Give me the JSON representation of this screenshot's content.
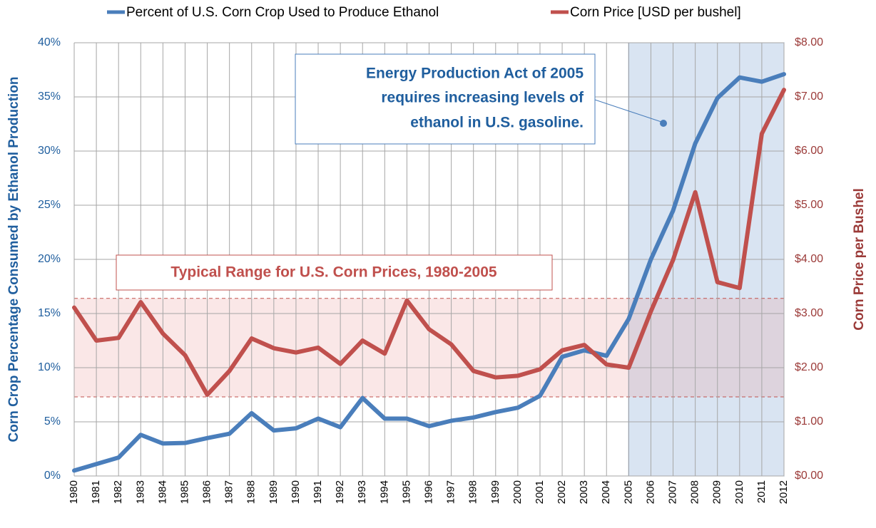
{
  "chart_data": {
    "type": "line",
    "x": [
      1980,
      1981,
      1982,
      1983,
      1984,
      1985,
      1986,
      1987,
      1988,
      1989,
      1990,
      1991,
      1992,
      1993,
      1994,
      1995,
      1996,
      1997,
      1998,
      1999,
      2000,
      2001,
      2002,
      2003,
      2004,
      2005,
      2006,
      2007,
      2008,
      2009,
      2010,
      2011,
      2012
    ],
    "xlim": [
      1980,
      2012
    ],
    "xticks": [
      1980,
      1981,
      1982,
      1983,
      1984,
      1985,
      1986,
      1987,
      1988,
      1989,
      1990,
      1991,
      1992,
      1993,
      1994,
      1995,
      1996,
      1997,
      1998,
      1999,
      2000,
      2001,
      2002,
      2003,
      2004,
      2005,
      2006,
      2007,
      2008,
      2009,
      2010,
      2011,
      2012
    ],
    "ylabel": "Corn Crop Percentage Consumed by Ethanol Production",
    "y2label": "Corn Price per Bushel",
    "ylim": [
      0,
      40
    ],
    "yticks": [
      {
        "value": 0,
        "label": "0%"
      },
      {
        "value": 5,
        "label": "5%"
      },
      {
        "value": 10,
        "label": "10%"
      },
      {
        "value": 15,
        "label": "15%"
      },
      {
        "value": 20,
        "label": "20%"
      },
      {
        "value": 25,
        "label": "25%"
      },
      {
        "value": 30,
        "label": "30%"
      },
      {
        "value": 35,
        "label": "35%"
      },
      {
        "value": 40,
        "label": "40%"
      }
    ],
    "y2lim": [
      0,
      8
    ],
    "y2ticks": [
      {
        "value": 0,
        "label": "$0.00"
      },
      {
        "value": 1,
        "label": "$1.00"
      },
      {
        "value": 2,
        "label": "$2.00"
      },
      {
        "value": 3,
        "label": "$3.00"
      },
      {
        "value": 4,
        "label": "$4.00"
      },
      {
        "value": 5,
        "label": "$5.00"
      },
      {
        "value": 6,
        "label": "$6.00"
      },
      {
        "value": 7,
        "label": "$7.00"
      },
      {
        "value": 8,
        "label": "$8.00"
      }
    ],
    "grid": true,
    "legend": "top",
    "series": [
      {
        "name": "Percent of U.S. Corn Crop Used to Produce Ethanol",
        "color": "#4a7ebb",
        "values": [
          0.5,
          1.1,
          1.7,
          3.8,
          3.0,
          3.05,
          3.5,
          3.9,
          5.8,
          4.2,
          4.4,
          5.3,
          4.5,
          7.2,
          5.3,
          5.3,
          4.6,
          5.1,
          5.4,
          5.9,
          6.3,
          7.4,
          11.0,
          11.6,
          11.1,
          14.5,
          20.0,
          24.5,
          30.7,
          34.9,
          36.8,
          36.4,
          37.1
        ]
      },
      {
        "name": "Corn Price [USD per bushel]",
        "color": "#c0504d",
        "axis": "y2",
        "values": [
          3.11,
          2.5,
          2.55,
          3.21,
          2.63,
          2.23,
          1.5,
          1.94,
          2.54,
          2.36,
          2.28,
          2.37,
          2.07,
          2.5,
          2.26,
          3.24,
          2.71,
          2.43,
          1.94,
          1.82,
          1.85,
          1.97,
          2.32,
          2.42,
          2.06,
          2.0,
          3.04,
          3.99,
          5.24,
          3.58,
          3.47,
          6.32,
          7.13
        ]
      }
    ],
    "shaded_x_range": [
      2005,
      2012
    ],
    "price_band": [
      1.46,
      3.28
    ],
    "annotations": [
      {
        "lines": [
          "Energy Production  Act of 2005",
          "requires increasing  levels of",
          "ethanol in U.S. gasoline."
        ]
      },
      {
        "lines": [
          "Typical Range for U.S. Corn Prices, 1980-2005"
        ]
      }
    ]
  }
}
